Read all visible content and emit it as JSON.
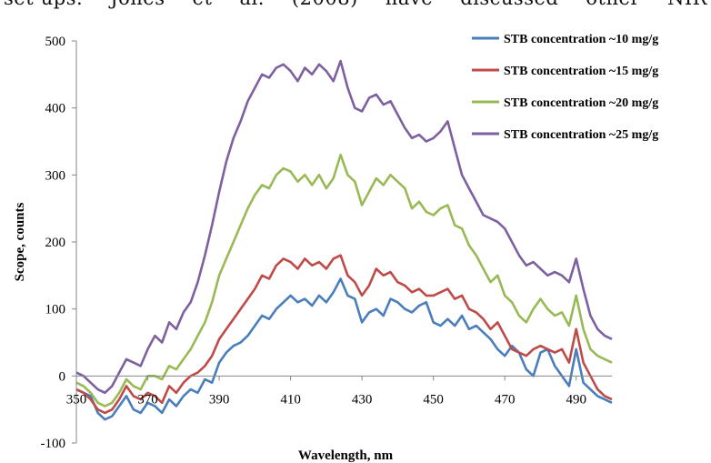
{
  "header_text": "set-ups. Jones et al. (2008) have discussed other NIR",
  "chart_data": {
    "type": "line",
    "xlabel": "Wavelength, nm",
    "ylabel": "Scope, counts",
    "xlim": [
      350,
      500
    ],
    "ylim": [
      -100,
      500
    ],
    "xticks": [
      350,
      370,
      390,
      410,
      430,
      450,
      470,
      490
    ],
    "yticks": [
      -100,
      0,
      100,
      200,
      300,
      400,
      500
    ],
    "x_tick_labels": [
      "350",
      "370",
      "390",
      "410",
      "430",
      "450",
      "470",
      "490"
    ],
    "y_tick_labels": [
      "-100",
      "0",
      "100",
      "200",
      "300",
      "400",
      "500"
    ],
    "grid": false,
    "legend_position": "top-right",
    "series": [
      {
        "name": "STB concentration ~10 mg/g",
        "color": "#4a7ebb",
        "x": [
          350,
          352,
          354,
          356,
          358,
          360,
          362,
          364,
          366,
          368,
          370,
          372,
          374,
          376,
          378,
          380,
          382,
          384,
          386,
          388,
          390,
          392,
          394,
          396,
          398,
          400,
          402,
          404,
          406,
          408,
          410,
          412,
          414,
          416,
          418,
          420,
          422,
          424,
          426,
          428,
          430,
          432,
          434,
          436,
          438,
          440,
          442,
          444,
          446,
          448,
          450,
          452,
          454,
          456,
          458,
          460,
          462,
          464,
          466,
          468,
          470,
          472,
          474,
          476,
          478,
          480,
          482,
          484,
          486,
          488,
          490,
          492,
          494,
          496,
          498,
          500
        ],
        "values": [
          -20,
          -25,
          -30,
          -55,
          -65,
          -60,
          -45,
          -30,
          -50,
          -55,
          -40,
          -45,
          -55,
          -35,
          -45,
          -30,
          -20,
          -25,
          -5,
          -10,
          20,
          35,
          45,
          50,
          60,
          75,
          90,
          85,
          100,
          110,
          120,
          110,
          115,
          105,
          120,
          110,
          125,
          145,
          120,
          115,
          80,
          95,
          100,
          90,
          115,
          110,
          100,
          95,
          105,
          110,
          80,
          75,
          85,
          75,
          90,
          70,
          75,
          65,
          55,
          40,
          30,
          45,
          35,
          10,
          0,
          35,
          40,
          15,
          0,
          -15,
          40,
          -10,
          -20,
          -30,
          -35,
          -40
        ]
      },
      {
        "name": "STB concentration ~15 mg/g",
        "color": "#be4b48",
        "x": [
          350,
          352,
          354,
          356,
          358,
          360,
          362,
          364,
          366,
          368,
          370,
          372,
          374,
          376,
          378,
          380,
          382,
          384,
          386,
          388,
          390,
          392,
          394,
          396,
          398,
          400,
          402,
          404,
          406,
          408,
          410,
          412,
          414,
          416,
          418,
          420,
          422,
          424,
          426,
          428,
          430,
          432,
          434,
          436,
          438,
          440,
          442,
          444,
          446,
          448,
          450,
          452,
          454,
          456,
          458,
          460,
          462,
          464,
          466,
          468,
          470,
          472,
          474,
          476,
          478,
          480,
          482,
          484,
          486,
          488,
          490,
          492,
          494,
          496,
          498,
          500
        ],
        "values": [
          -20,
          -25,
          -35,
          -50,
          -55,
          -50,
          -35,
          -15,
          -30,
          -35,
          -25,
          -30,
          -40,
          -15,
          -25,
          -10,
          0,
          5,
          15,
          30,
          55,
          70,
          85,
          100,
          115,
          130,
          150,
          145,
          165,
          175,
          170,
          160,
          175,
          165,
          170,
          160,
          175,
          180,
          150,
          140,
          120,
          135,
          160,
          150,
          155,
          140,
          135,
          125,
          130,
          120,
          120,
          125,
          130,
          115,
          120,
          100,
          95,
          85,
          70,
          80,
          60,
          40,
          35,
          30,
          40,
          45,
          40,
          35,
          40,
          20,
          70,
          20,
          0,
          -20,
          -30,
          -35
        ]
      },
      {
        "name": "STB concentration ~20 mg/g",
        "color": "#98b954",
        "x": [
          350,
          352,
          354,
          356,
          358,
          360,
          362,
          364,
          366,
          368,
          370,
          372,
          374,
          376,
          378,
          380,
          382,
          384,
          386,
          388,
          390,
          392,
          394,
          396,
          398,
          400,
          402,
          404,
          406,
          408,
          410,
          412,
          414,
          416,
          418,
          420,
          422,
          424,
          426,
          428,
          430,
          432,
          434,
          436,
          438,
          440,
          442,
          444,
          446,
          448,
          450,
          452,
          454,
          456,
          458,
          460,
          462,
          464,
          466,
          468,
          470,
          472,
          474,
          476,
          478,
          480,
          482,
          484,
          486,
          488,
          490,
          492,
          494,
          496,
          498,
          500
        ],
        "values": [
          -10,
          -15,
          -25,
          -40,
          -45,
          -40,
          -25,
          -5,
          -15,
          -20,
          0,
          0,
          -5,
          15,
          10,
          25,
          40,
          60,
          80,
          110,
          150,
          175,
          200,
          225,
          250,
          270,
          285,
          280,
          300,
          310,
          305,
          290,
          300,
          285,
          300,
          280,
          295,
          330,
          300,
          290,
          255,
          275,
          295,
          285,
          300,
          290,
          280,
          250,
          260,
          245,
          240,
          250,
          255,
          225,
          220,
          195,
          180,
          160,
          140,
          150,
          120,
          110,
          90,
          80,
          100,
          115,
          100,
          90,
          95,
          75,
          120,
          70,
          40,
          30,
          25,
          20
        ]
      },
      {
        "name": "STB concentration ~25 mg/g",
        "color": "#7d60a0",
        "x": [
          350,
          352,
          354,
          356,
          358,
          360,
          362,
          364,
          366,
          368,
          370,
          372,
          374,
          376,
          378,
          380,
          382,
          384,
          386,
          388,
          390,
          392,
          394,
          396,
          398,
          400,
          402,
          404,
          406,
          408,
          410,
          412,
          414,
          416,
          418,
          420,
          422,
          424,
          426,
          428,
          430,
          432,
          434,
          436,
          438,
          440,
          442,
          444,
          446,
          448,
          450,
          452,
          454,
          456,
          458,
          460,
          462,
          464,
          466,
          468,
          470,
          472,
          474,
          476,
          478,
          480,
          482,
          484,
          486,
          488,
          490,
          492,
          494,
          496,
          498,
          500
        ],
        "values": [
          5,
          0,
          -10,
          -20,
          -25,
          -15,
          5,
          25,
          20,
          15,
          40,
          60,
          50,
          80,
          70,
          95,
          110,
          140,
          180,
          225,
          275,
          320,
          355,
          380,
          410,
          430,
          450,
          445,
          460,
          465,
          455,
          440,
          460,
          450,
          465,
          455,
          440,
          470,
          430,
          400,
          395,
          415,
          420,
          405,
          410,
          390,
          370,
          355,
          360,
          350,
          355,
          365,
          380,
          340,
          300,
          280,
          260,
          240,
          235,
          230,
          220,
          200,
          180,
          165,
          170,
          160,
          150,
          155,
          150,
          140,
          175,
          130,
          90,
          70,
          60,
          55
        ]
      }
    ]
  }
}
